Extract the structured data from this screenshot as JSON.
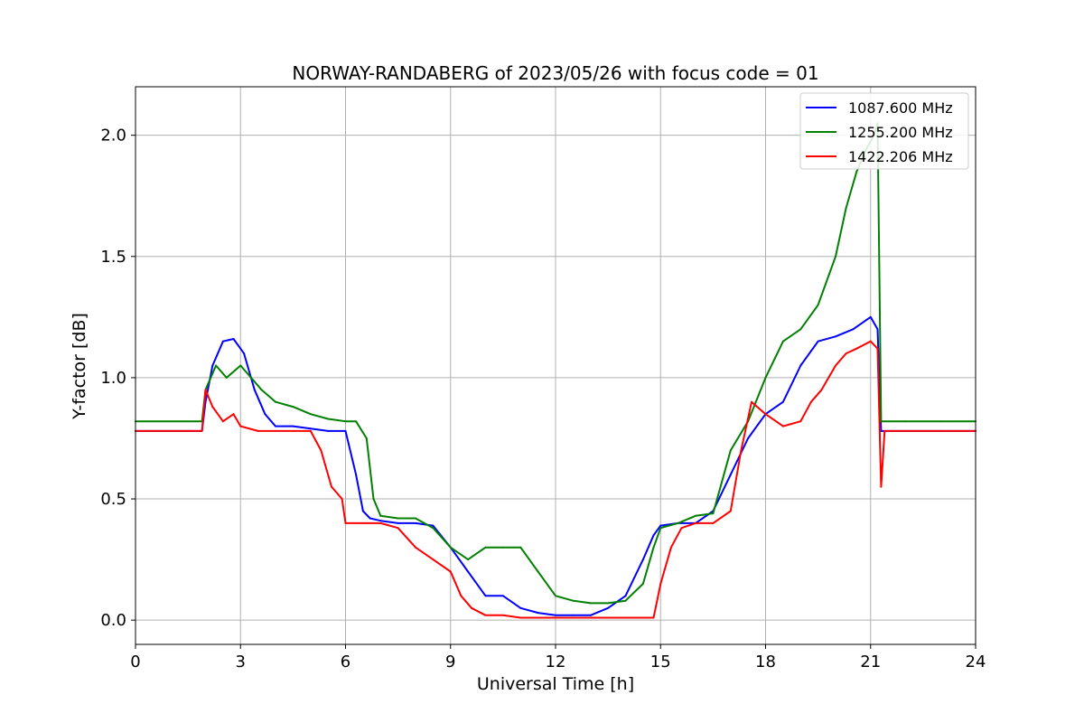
{
  "chart_data": {
    "type": "line",
    "title": "NORWAY-RANDABERG of 2023/05/26 with focus code = 01",
    "xlabel": "Universal Time [h]",
    "ylabel": "Y-factor [dB]",
    "xlim": [
      0,
      24
    ],
    "ylim": [
      -0.1,
      2.2
    ],
    "xticks": [
      0,
      3,
      6,
      9,
      12,
      15,
      18,
      21,
      24
    ],
    "xtick_labels": [
      "0",
      "3",
      "6",
      "9",
      "12",
      "15",
      "18",
      "21",
      "24"
    ],
    "yticks": [
      0.0,
      0.5,
      1.0,
      1.5,
      2.0
    ],
    "ytick_labels": [
      "0.0",
      "0.5",
      "1.0",
      "1.5",
      "2.0"
    ],
    "grid": true,
    "legend_position": "top-right",
    "series": [
      {
        "name": "1087.600 MHz",
        "color": "#0000ff",
        "x": [
          0,
          1.9,
          2.0,
          2.2,
          2.5,
          2.8,
          3.1,
          3.4,
          3.7,
          4.0,
          4.5,
          5.0,
          5.5,
          6.0,
          6.3,
          6.5,
          6.7,
          7.0,
          7.5,
          8.0,
          8.5,
          9.0,
          9.5,
          10.0,
          10.5,
          11.0,
          11.5,
          12.0,
          12.5,
          13.0,
          13.5,
          14.0,
          14.5,
          14.8,
          15.0,
          15.5,
          16.0,
          16.5,
          17.0,
          17.5,
          18.0,
          18.5,
          19.0,
          19.5,
          20.0,
          20.5,
          21.0,
          21.2,
          21.3,
          22.0,
          23.0,
          24.0
        ],
        "y": [
          0.78,
          0.78,
          0.9,
          1.05,
          1.15,
          1.16,
          1.1,
          0.95,
          0.85,
          0.8,
          0.8,
          0.79,
          0.78,
          0.78,
          0.6,
          0.45,
          0.42,
          0.41,
          0.4,
          0.4,
          0.39,
          0.3,
          0.2,
          0.1,
          0.1,
          0.05,
          0.03,
          0.02,
          0.02,
          0.02,
          0.05,
          0.1,
          0.25,
          0.35,
          0.39,
          0.4,
          0.4,
          0.45,
          0.6,
          0.75,
          0.85,
          0.9,
          1.05,
          1.15,
          1.17,
          1.2,
          1.25,
          1.2,
          0.78,
          0.78,
          0.78,
          0.78
        ]
      },
      {
        "name": "1255.200 MHz",
        "color": "#008000",
        "x": [
          0,
          1.9,
          2.0,
          2.3,
          2.6,
          3.0,
          3.3,
          3.6,
          4.0,
          4.5,
          5.0,
          5.5,
          6.0,
          6.3,
          6.6,
          6.8,
          7.0,
          7.5,
          8.0,
          8.5,
          9.0,
          9.5,
          10.0,
          10.5,
          11.0,
          11.5,
          12.0,
          12.5,
          13.0,
          13.5,
          14.0,
          14.5,
          14.8,
          15.0,
          15.5,
          16.0,
          16.5,
          17.0,
          17.5,
          18.0,
          18.5,
          19.0,
          19.5,
          20.0,
          20.3,
          20.6,
          20.9,
          21.1,
          21.2,
          21.3,
          22.0,
          23.0,
          24.0
        ],
        "y": [
          0.82,
          0.82,
          0.95,
          1.05,
          1.0,
          1.05,
          1.0,
          0.95,
          0.9,
          0.88,
          0.85,
          0.83,
          0.82,
          0.82,
          0.75,
          0.5,
          0.43,
          0.42,
          0.42,
          0.38,
          0.3,
          0.25,
          0.3,
          0.3,
          0.3,
          0.2,
          0.1,
          0.08,
          0.07,
          0.07,
          0.08,
          0.15,
          0.3,
          0.38,
          0.4,
          0.43,
          0.44,
          0.7,
          0.82,
          1.0,
          1.15,
          1.2,
          1.3,
          1.5,
          1.7,
          1.85,
          1.95,
          2.0,
          2.05,
          0.82,
          0.82,
          0.82,
          0.82
        ]
      },
      {
        "name": "1422.206 MHz",
        "color": "#ff0000",
        "x": [
          0,
          1.9,
          2.0,
          2.2,
          2.5,
          2.8,
          3.0,
          3.5,
          4.0,
          4.5,
          5.0,
          5.3,
          5.6,
          5.9,
          6.0,
          6.5,
          7.0,
          7.5,
          8.0,
          8.5,
          9.0,
          9.3,
          9.6,
          10.0,
          10.5,
          11.0,
          11.5,
          12.0,
          12.5,
          13.0,
          13.5,
          14.0,
          14.5,
          14.8,
          15.0,
          15.3,
          15.6,
          16.0,
          16.5,
          17.0,
          17.3,
          17.6,
          18.0,
          18.5,
          19.0,
          19.3,
          19.6,
          20.0,
          20.3,
          20.6,
          21.0,
          21.2,
          21.3,
          21.4,
          22.0,
          23.0,
          24.0
        ],
        "y": [
          0.78,
          0.78,
          0.95,
          0.88,
          0.82,
          0.85,
          0.8,
          0.78,
          0.78,
          0.78,
          0.78,
          0.7,
          0.55,
          0.5,
          0.4,
          0.4,
          0.4,
          0.38,
          0.3,
          0.25,
          0.2,
          0.1,
          0.05,
          0.02,
          0.02,
          0.01,
          0.01,
          0.01,
          0.01,
          0.01,
          0.01,
          0.01,
          0.01,
          0.01,
          0.15,
          0.3,
          0.38,
          0.4,
          0.4,
          0.45,
          0.7,
          0.9,
          0.85,
          0.8,
          0.82,
          0.9,
          0.95,
          1.05,
          1.1,
          1.12,
          1.15,
          1.12,
          0.55,
          0.78,
          0.78,
          0.78,
          0.78
        ]
      }
    ]
  }
}
